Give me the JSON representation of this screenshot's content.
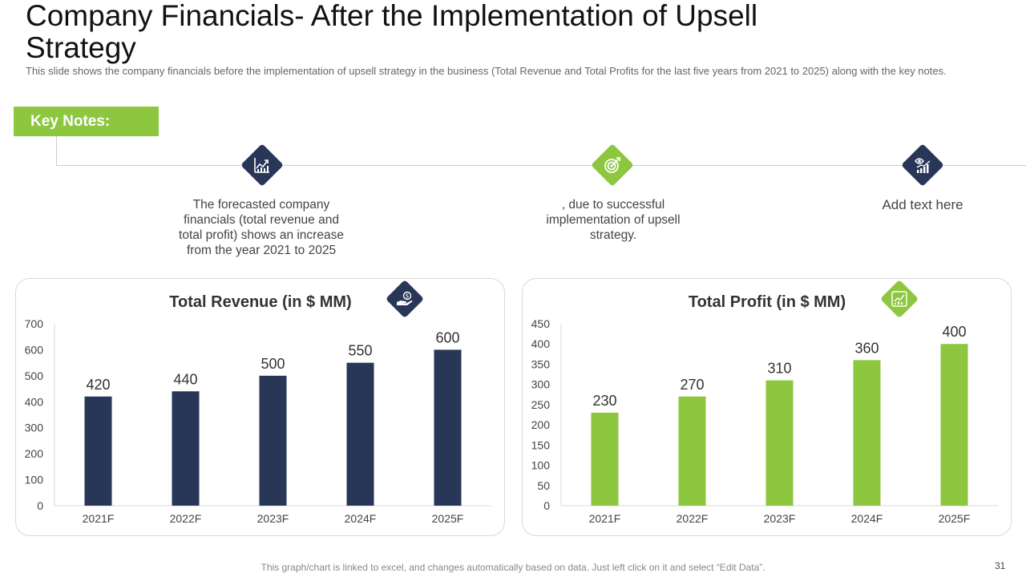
{
  "header": {
    "title": "Company Financials- After the Implementation of Upsell Strategy",
    "subtitle": "This slide shows the company financials before the implementation of upsell strategy in the business (Total Revenue and Total Profits for the last five years from 2021 to 2025) along with the key notes."
  },
  "key_notes": {
    "label": "Key Notes:",
    "items": [
      {
        "icon": "growth-chart-icon",
        "text": "The forecasted company financials (total revenue and total profit) shows an increase from the year 2021 to 2025"
      },
      {
        "icon": "target-icon",
        "text": ", due to successful implementation of upsell strategy."
      },
      {
        "icon": "eye-chart-icon",
        "text": "Add text here"
      }
    ]
  },
  "colors": {
    "navy": "#283657",
    "green": "#8dc63f"
  },
  "chart_data": [
    {
      "type": "bar",
      "title": "Total Revenue (in $ MM)",
      "icon": "money-hand-icon",
      "categories": [
        "2021F",
        "2022F",
        "2023F",
        "2024F",
        "2025F"
      ],
      "values": [
        420,
        440,
        500,
        550,
        600
      ],
      "ylim": [
        0,
        700
      ],
      "yticks": [
        0,
        100,
        200,
        300,
        400,
        500,
        600,
        700
      ],
      "color": "#283657"
    },
    {
      "type": "bar",
      "title": "Total Profit (in $ MM)",
      "icon": "growth-chart-icon",
      "categories": [
        "2021F",
        "2022F",
        "2023F",
        "2024F",
        "2025F"
      ],
      "values": [
        230,
        270,
        310,
        360,
        400
      ],
      "ylim": [
        0,
        450
      ],
      "yticks": [
        0,
        50,
        100,
        150,
        200,
        250,
        300,
        350,
        400,
        450
      ],
      "color": "#8dc63f"
    }
  ],
  "footer": {
    "note": "This graph/chart is linked to excel, and changes automatically based on data. Just left click on it and select “Edit Data”.",
    "page_number": "31"
  }
}
